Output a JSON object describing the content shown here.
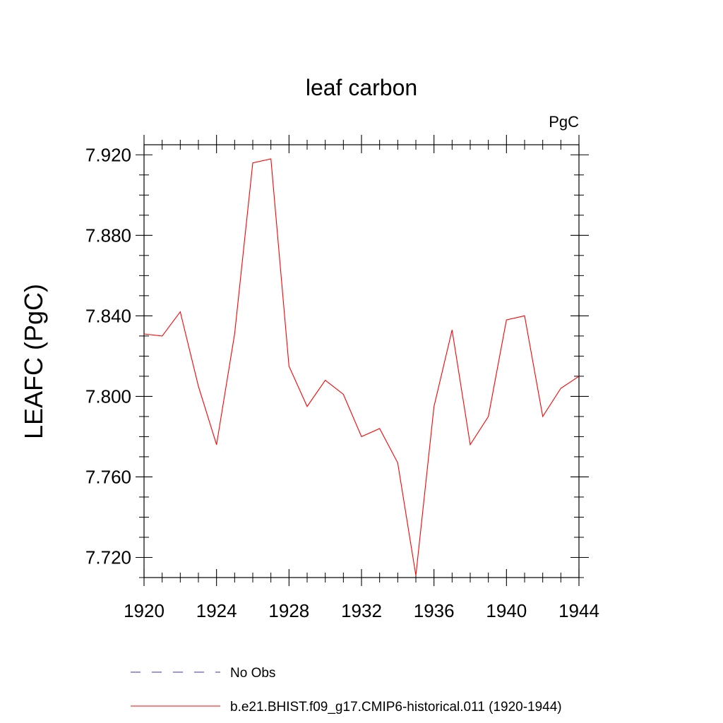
{
  "chart_data": {
    "type": "line",
    "title": "leaf carbon",
    "units_label": "PgC",
    "ylabel": "LEAFC  (PgC)",
    "xlabel": "",
    "xlim": [
      1920,
      1944
    ],
    "ylim": [
      7.71,
      7.925
    ],
    "xticks": [
      1920,
      1924,
      1928,
      1932,
      1936,
      1940,
      1944
    ],
    "xtick_labels": [
      "1920",
      "1924",
      "1928",
      "1932",
      "1936",
      "1940",
      "1944"
    ],
    "yticks": [
      7.72,
      7.76,
      7.8,
      7.84,
      7.88,
      7.92
    ],
    "ytick_labels": [
      "7.720",
      "7.760",
      "7.800",
      "7.840",
      "7.880",
      "7.920"
    ],
    "grid": false,
    "legend_position": "bottom",
    "series": [
      {
        "name": "No Obs",
        "color": "#3a2bd9",
        "dash": "dashed",
        "x": [],
        "y": []
      },
      {
        "name": "b.e21.BHIST.f09_g17.CMIP6-historical.011 (1920-1944)",
        "color": "#ff0000",
        "dash": "solid",
        "x": [
          1920,
          1921,
          1922,
          1923,
          1924,
          1925,
          1926,
          1927,
          1928,
          1929,
          1930,
          1931,
          1932,
          1933,
          1934,
          1935,
          1936,
          1937,
          1938,
          1939,
          1940,
          1941,
          1942,
          1943,
          1944
        ],
        "y": [
          7.831,
          7.83,
          7.842,
          7.805,
          7.776,
          7.831,
          7.916,
          7.918,
          7.815,
          7.795,
          7.808,
          7.801,
          7.78,
          7.784,
          7.767,
          7.711,
          7.795,
          7.833,
          7.776,
          7.79,
          7.838,
          7.84,
          7.79,
          7.804,
          7.81
        ]
      }
    ]
  }
}
